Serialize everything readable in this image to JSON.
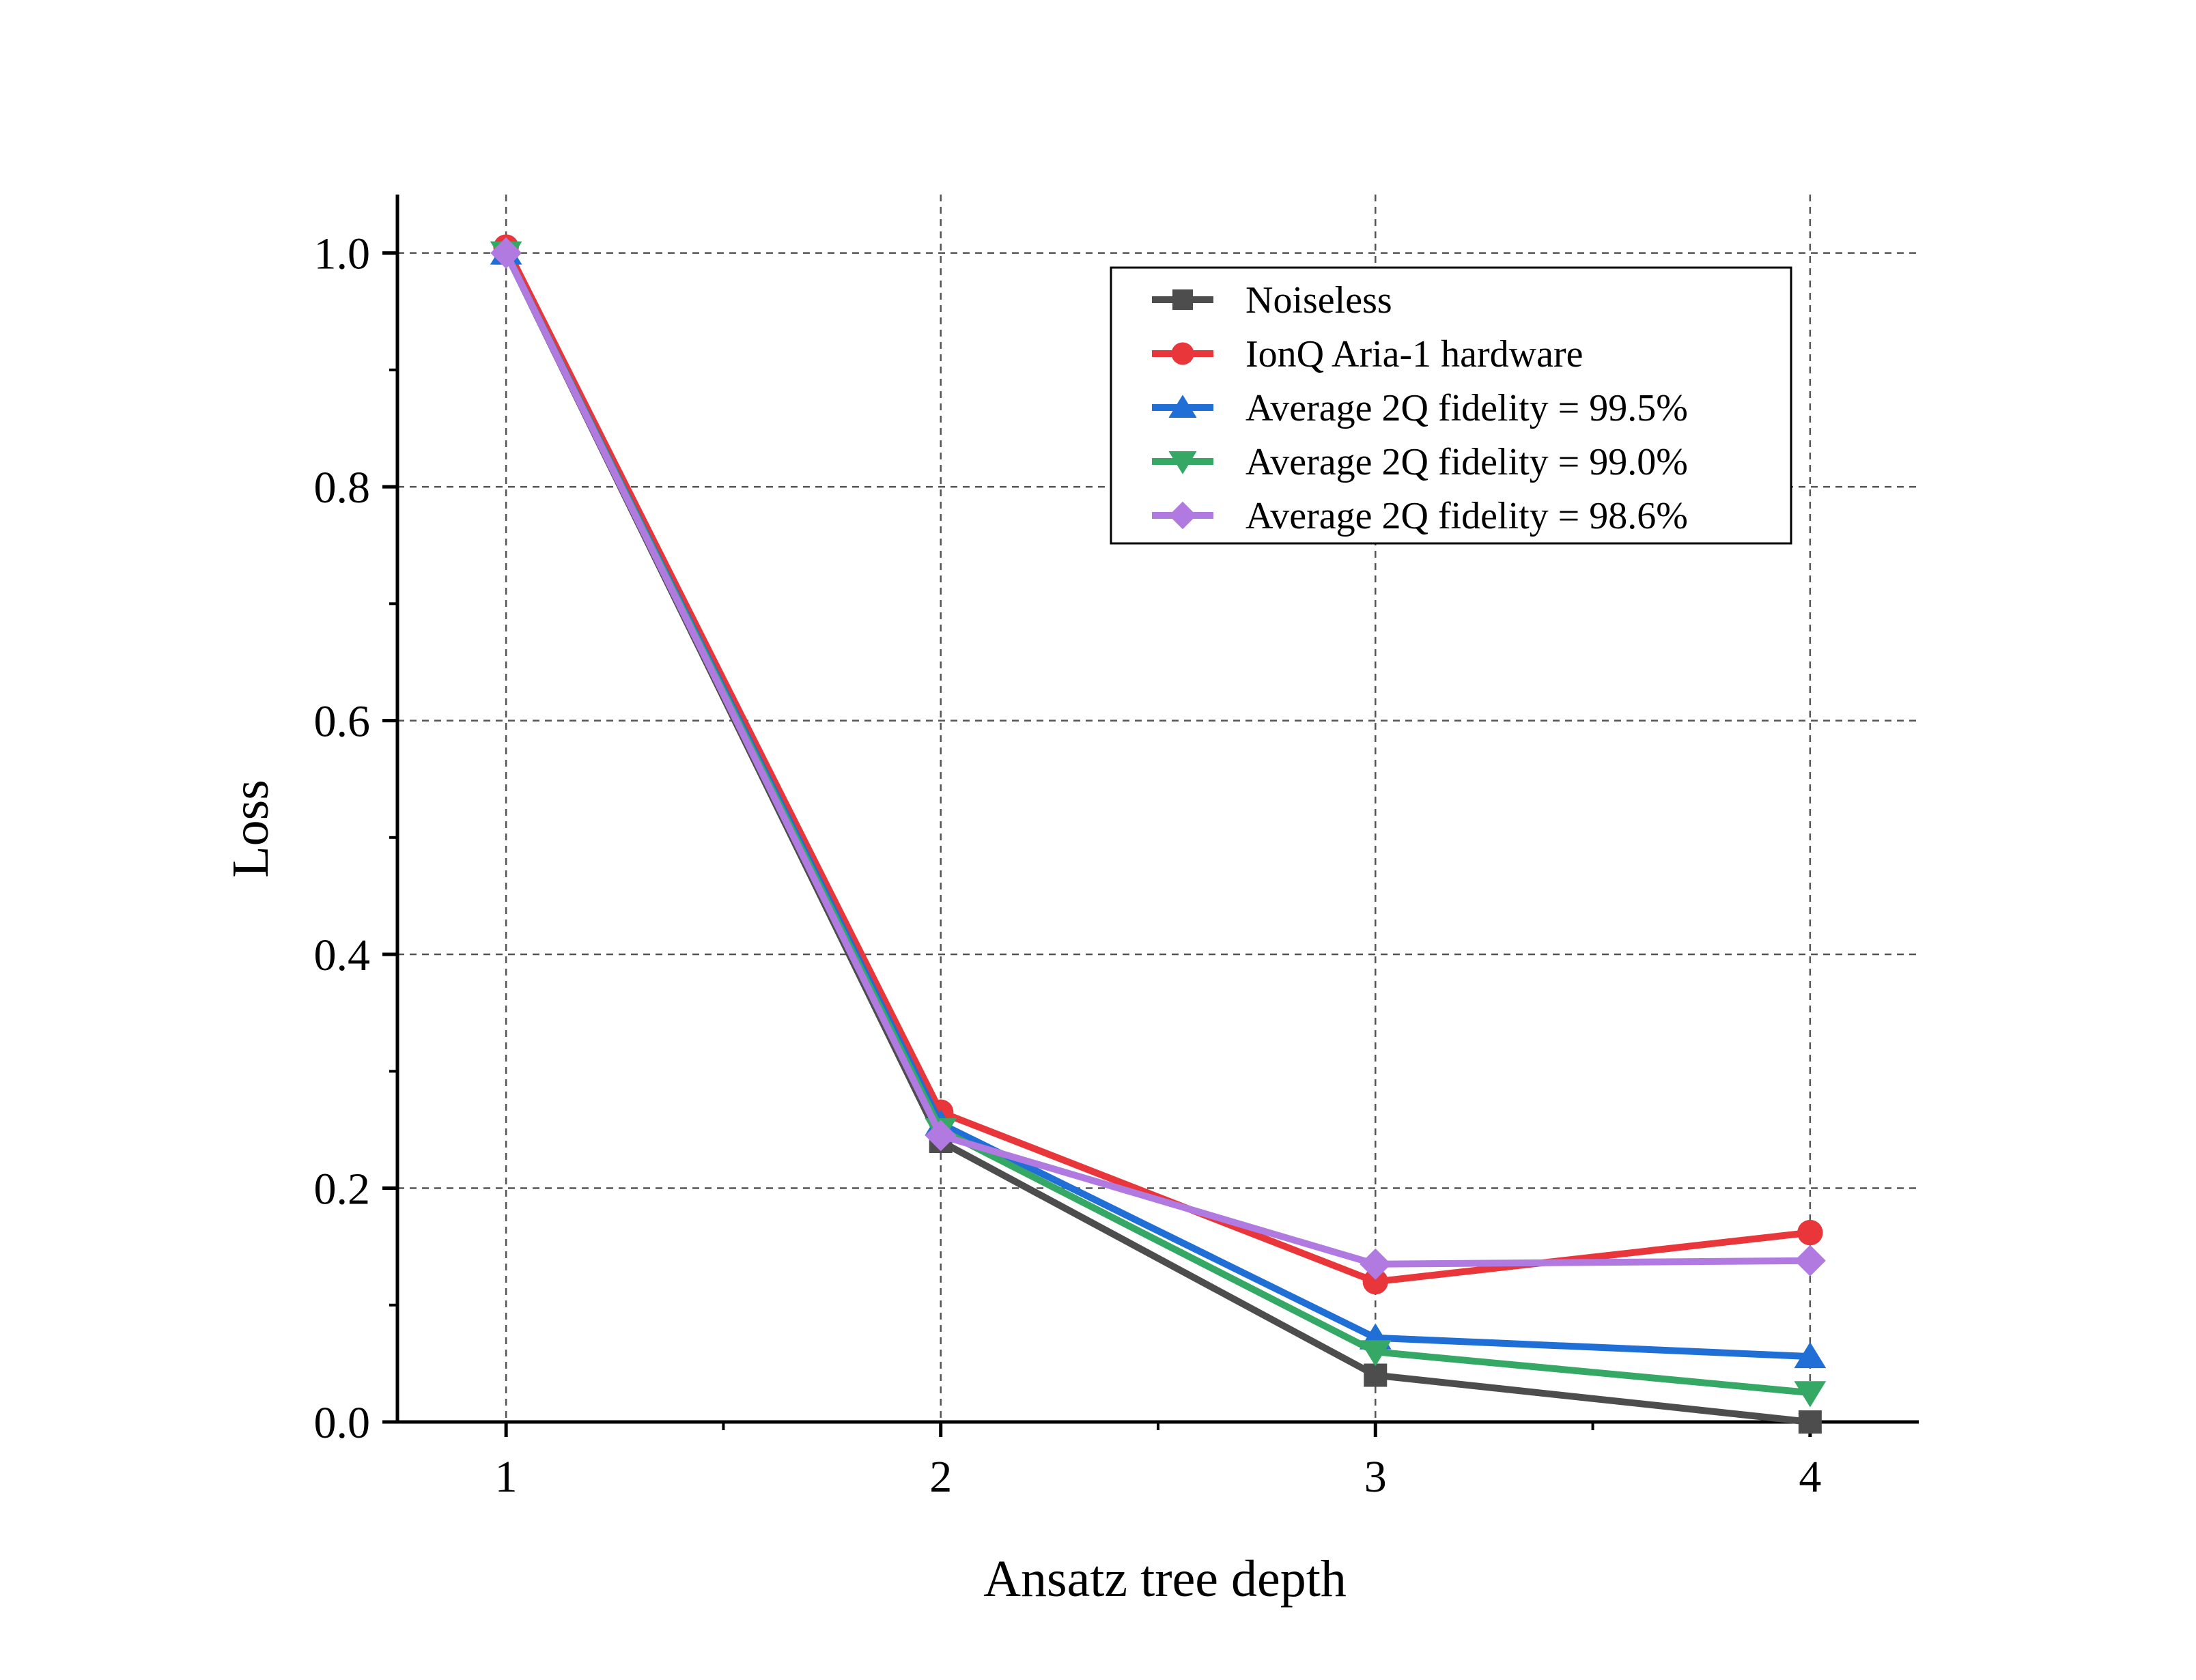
{
  "chart_data": {
    "type": "line",
    "title": "",
    "xlabel": "Ansatz tree depth",
    "ylabel": "Loss",
    "x": [
      1,
      2,
      3,
      4
    ],
    "xlim": [
      0.75,
      4.25
    ],
    "ylim": [
      0,
      1.05
    ],
    "xticks": [
      "1",
      "2",
      "3",
      "4"
    ],
    "yticks": [
      "0.0",
      "0.2",
      "0.4",
      "0.6",
      "0.8",
      "1.0"
    ],
    "grid": true,
    "legend_position": "top-right",
    "series": [
      {
        "name": "Noiseless",
        "color": "#4d4d4d",
        "marker": "square",
        "values": [
          1.0,
          0.24,
          0.04,
          0.0
        ]
      },
      {
        "name": "IonQ Aria-1 hardware",
        "color": "#e8363a",
        "marker": "circle",
        "values": [
          1.005,
          0.265,
          0.12,
          0.162
        ]
      },
      {
        "name": "Average 2Q fidelity = 99.5%",
        "color": "#1f6fd6",
        "marker": "triangle-up",
        "values": [
          1.0,
          0.255,
          0.072,
          0.056
        ]
      },
      {
        "name": "Average 2Q fidelity = 99.0%",
        "color": "#35a865",
        "marker": "triangle-down",
        "values": [
          1.0,
          0.25,
          0.06,
          0.025
        ]
      },
      {
        "name": "Average 2Q fidelity = 98.6%",
        "color": "#b07ae0",
        "marker": "diamond",
        "values": [
          1.0,
          0.245,
          0.135,
          0.138
        ]
      }
    ]
  }
}
